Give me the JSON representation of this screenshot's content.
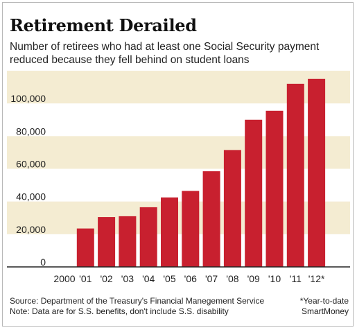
{
  "title": "Retirement Derailed",
  "subtitle": "Number of retirees who had at least one Social Security payment reduced because they fell behind on student loans",
  "footer": {
    "source": "Source: Department of the Treasury's Financial Manegement Service",
    "note": "Note: Data are for S.S. benefits, don't include S.S. disability",
    "ytd": "*Year-to-date",
    "credit": "SmartMoney"
  },
  "colors": {
    "bar": "#c8202f",
    "band": "#f4ecd2",
    "axis": "#222222"
  },
  "chart_data": {
    "type": "bar",
    "title": "Retirement Derailed",
    "subtitle": "Number of retirees who had at least one Social Security payment reduced because they fell behind on student loans",
    "categories": [
      "2000",
      "'01",
      "'02",
      "'03",
      "'04",
      "'05",
      "'06",
      "'07",
      "'08",
      "'09",
      "'10",
      "'11",
      "'12*"
    ],
    "values": [
      0,
      23500,
      30500,
      31000,
      36500,
      42500,
      46500,
      58500,
      71500,
      90000,
      95500,
      112000,
      115000
    ],
    "yticks": [
      0,
      20000,
      40000,
      60000,
      80000,
      100000
    ],
    "ytick_labels": [
      "0",
      "20,000",
      "40,000",
      "60,000",
      "80,000",
      "100,000"
    ],
    "ylim": [
      0,
      120000
    ],
    "grid": "alternating horizontal bands",
    "legend": "none"
  }
}
